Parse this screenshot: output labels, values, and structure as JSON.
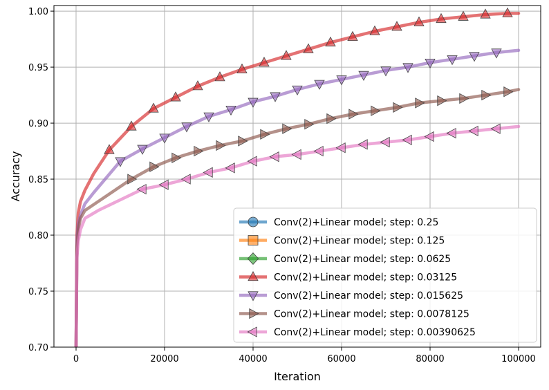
{
  "chart_data": {
    "type": "line",
    "title": "",
    "xlabel": "Iteration",
    "ylabel": "Accuracy",
    "xlim": [
      -5000,
      105000
    ],
    "ylim": [
      0.7,
      1.005
    ],
    "xticks": [
      0,
      20000,
      40000,
      60000,
      80000,
      100000
    ],
    "xtick_labels": [
      "0",
      "20000",
      "40000",
      "60000",
      "80000",
      "100000"
    ],
    "yticks": [
      0.7,
      0.75,
      0.8,
      0.85,
      0.9,
      0.95,
      1.0
    ],
    "ytick_labels": [
      "0.70",
      "0.75",
      "0.80",
      "0.85",
      "0.90",
      "0.95",
      "1.00"
    ],
    "grid": true,
    "legend_position": "lower-right",
    "series": [
      {
        "name": "Conv(2)+Linear model; step: 0.25",
        "color": "#1f77b4",
        "marker": "circle",
        "x": [],
        "y": []
      },
      {
        "name": "Conv(2)+Linear model; step: 0.125",
        "color": "#ff7f0e",
        "marker": "square",
        "x": [],
        "y": []
      },
      {
        "name": "Conv(2)+Linear model; step: 0.0625",
        "color": "#2ca02c",
        "marker": "diamond",
        "x": [],
        "y": []
      },
      {
        "name": "Conv(2)+Linear model; step: 0.03125",
        "color": "#d62728",
        "marker": "triangle-up",
        "x": [
          0,
          200,
          500,
          1000,
          2000,
          4000,
          7500,
          12500,
          17500,
          22500,
          27500,
          32500,
          37500,
          42500,
          47500,
          52500,
          57500,
          62500,
          67500,
          72500,
          77500,
          82500,
          87500,
          92500,
          97500,
          100000
        ],
        "y": [
          0.7,
          0.8,
          0.82,
          0.83,
          0.84,
          0.855,
          0.876,
          0.897,
          0.913,
          0.923,
          0.933,
          0.941,
          0.948,
          0.954,
          0.96,
          0.966,
          0.972,
          0.977,
          0.982,
          0.986,
          0.99,
          0.993,
          0.995,
          0.997,
          0.998,
          0.998
        ],
        "marker_x": [
          7500,
          12500,
          17500,
          22500,
          27500,
          32500,
          37500,
          42500,
          47500,
          52500,
          57500,
          62500,
          67500,
          72500,
          77500,
          82500,
          87500,
          92500,
          97500
        ]
      },
      {
        "name": "Conv(2)+Linear model; step: 0.015625",
        "color": "#9467bd",
        "marker": "triangle-down",
        "x": [
          0,
          200,
          500,
          1000,
          2000,
          4000,
          10000,
          15000,
          20000,
          25000,
          30000,
          35000,
          40000,
          45000,
          50000,
          55000,
          60000,
          65000,
          70000,
          75000,
          80000,
          85000,
          90000,
          95000,
          100000
        ],
        "y": [
          0.7,
          0.795,
          0.81,
          0.818,
          0.828,
          0.838,
          0.866,
          0.877,
          0.887,
          0.897,
          0.906,
          0.912,
          0.919,
          0.924,
          0.93,
          0.935,
          0.939,
          0.943,
          0.947,
          0.95,
          0.954,
          0.957,
          0.96,
          0.963,
          0.965
        ],
        "marker_x": [
          10000,
          15000,
          20000,
          25000,
          30000,
          35000,
          40000,
          45000,
          50000,
          55000,
          60000,
          65000,
          70000,
          75000,
          80000,
          85000,
          90000,
          95000
        ]
      },
      {
        "name": "Conv(2)+Linear model; step: 0.0078125",
        "color": "#8c564b",
        "marker": "triangle-right",
        "x": [
          0,
          200,
          500,
          1000,
          2000,
          5000,
          12500,
          17500,
          22500,
          27500,
          32500,
          37500,
          42500,
          47500,
          52500,
          57500,
          62500,
          67500,
          72500,
          77500,
          82500,
          87500,
          92500,
          97500,
          100000
        ],
        "y": [
          0.7,
          0.79,
          0.805,
          0.815,
          0.822,
          0.83,
          0.85,
          0.861,
          0.869,
          0.875,
          0.88,
          0.884,
          0.89,
          0.895,
          0.899,
          0.904,
          0.908,
          0.911,
          0.914,
          0.918,
          0.92,
          0.922,
          0.925,
          0.928,
          0.93
        ],
        "marker_x": [
          12500,
          17500,
          22500,
          27500,
          32500,
          37500,
          42500,
          47500,
          52500,
          57500,
          62500,
          67500,
          72500,
          77500,
          82500,
          87500,
          92500,
          97500
        ]
      },
      {
        "name": "Conv(2)+Linear model; step: 0.00390625",
        "color": "#e377c2",
        "marker": "triangle-left",
        "x": [
          0,
          200,
          500,
          1000,
          2000,
          5000,
          15000,
          20000,
          25000,
          30000,
          35000,
          40000,
          45000,
          50000,
          55000,
          60000,
          65000,
          70000,
          75000,
          80000,
          85000,
          90000,
          95000,
          100000
        ],
        "y": [
          0.7,
          0.78,
          0.795,
          0.805,
          0.815,
          0.822,
          0.841,
          0.845,
          0.85,
          0.856,
          0.86,
          0.866,
          0.87,
          0.872,
          0.875,
          0.878,
          0.881,
          0.883,
          0.885,
          0.888,
          0.891,
          0.893,
          0.895,
          0.897
        ],
        "marker_x": [
          15000,
          20000,
          25000,
          30000,
          35000,
          40000,
          45000,
          50000,
          55000,
          60000,
          65000,
          70000,
          75000,
          80000,
          85000,
          90000,
          95000
        ]
      }
    ]
  }
}
